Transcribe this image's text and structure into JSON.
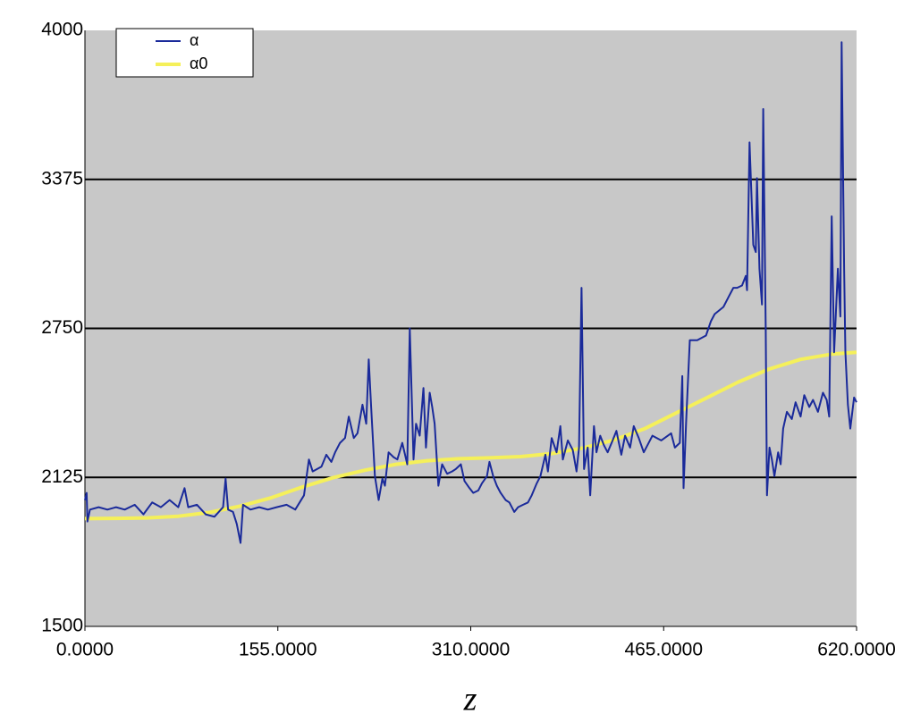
{
  "chart_data": {
    "type": "line",
    "xlabel": "z",
    "xlim": [
      0,
      620
    ],
    "xticks": [
      {
        "value": 0,
        "label": "0.0000"
      },
      {
        "value": 155,
        "label": "155.0000"
      },
      {
        "value": 310,
        "label": "310.0000"
      },
      {
        "value": 465,
        "label": "465.0000"
      },
      {
        "value": 620,
        "label": "620.0000"
      }
    ],
    "ylim": [
      1500,
      4000
    ],
    "yticks": [
      1500,
      2125,
      2750,
      3375,
      4000
    ],
    "grid": true,
    "legend": "upper left",
    "background": "#c8c8c8",
    "series": [
      {
        "name": "α",
        "color": "#1a2a9a",
        "x": [
          0,
          1.4,
          2,
          4,
          11,
          18,
          25,
          32,
          40,
          47,
          54,
          61,
          68,
          75,
          80,
          83,
          90,
          97,
          104,
          111,
          113,
          115,
          119,
          122,
          125,
          127,
          133,
          140,
          147,
          154,
          162,
          169,
          176,
          180,
          183,
          190,
          194,
          198,
          201,
          205,
          209,
          212,
          216,
          219,
          223,
          226,
          228,
          230,
          233,
          236,
          239,
          241,
          244,
          248,
          251,
          255,
          259,
          261,
          264,
          266,
          269,
          272,
          274,
          277,
          279,
          281,
          284,
          287,
          291,
          295,
          298,
          302,
          305,
          309,
          312,
          316,
          319,
          323,
          325,
          328,
          331,
          334,
          338,
          341,
          345,
          348,
          352,
          356,
          359,
          363,
          366,
          370,
          372,
          375,
          379,
          382,
          384,
          388,
          392,
          395,
          397,
          399,
          401,
          404,
          406,
          409,
          411,
          414,
          417,
          420,
          424,
          427,
          431,
          434,
          438,
          441,
          445,
          449,
          456,
          463,
          471,
          474,
          478,
          480,
          481,
          483,
          486,
          492,
          499,
          503,
          506,
          513,
          517,
          521,
          524,
          528,
          531,
          532,
          534,
          537,
          539,
          540,
          542,
          544,
          545,
          547,
          548,
          550,
          552,
          554,
          557,
          559,
          561,
          564,
          568,
          571,
          575,
          578,
          582,
          585,
          589,
          593,
          596,
          598,
          600,
          602,
          605,
          607,
          608,
          610,
          611,
          613,
          615,
          618,
          620
        ],
        "values": [
          2030,
          2060,
          1940,
          1990,
          2000,
          1990,
          2000,
          1990,
          2010,
          1970,
          2020,
          2000,
          2030,
          2000,
          2080,
          2000,
          2010,
          1970,
          1960,
          2000,
          2120,
          1990,
          1980,
          1930,
          1850,
          2010,
          1990,
          2000,
          1990,
          2000,
          2010,
          1990,
          2050,
          2200,
          2150,
          2170,
          2220,
          2190,
          2230,
          2270,
          2290,
          2380,
          2290,
          2310,
          2430,
          2350,
          2620,
          2420,
          2130,
          2030,
          2120,
          2090,
          2230,
          2210,
          2200,
          2270,
          2180,
          2750,
          2200,
          2350,
          2300,
          2500,
          2250,
          2480,
          2420,
          2350,
          2090,
          2180,
          2140,
          2150,
          2160,
          2180,
          2110,
          2080,
          2060,
          2070,
          2100,
          2130,
          2190,
          2130,
          2090,
          2060,
          2030,
          2020,
          1980,
          2000,
          2010,
          2020,
          2050,
          2100,
          2130,
          2220,
          2150,
          2290,
          2230,
          2340,
          2200,
          2280,
          2240,
          2150,
          2250,
          2920,
          2160,
          2250,
          2050,
          2340,
          2230,
          2300,
          2260,
          2230,
          2280,
          2320,
          2220,
          2300,
          2250,
          2340,
          2290,
          2230,
          2300,
          2280,
          2310,
          2250,
          2270,
          2550,
          2080,
          2350,
          2700,
          2700,
          2720,
          2780,
          2810,
          2840,
          2880,
          2920,
          2920,
          2930,
          2970,
          2910,
          3530,
          3100,
          3070,
          3380,
          3000,
          2850,
          3670,
          2750,
          2050,
          2250,
          2200,
          2130,
          2230,
          2180,
          2330,
          2400,
          2370,
          2440,
          2380,
          2470,
          2420,
          2450,
          2400,
          2480,
          2450,
          2380,
          3220,
          2650,
          3000,
          2800,
          3950,
          3000,
          2650,
          2430,
          2330,
          2460,
          2440
        ]
      },
      {
        "name": "α0",
        "color": "#f5f05a",
        "x": [
          0,
          25,
          50,
          75,
          100,
          125,
          150,
          175,
          200,
          225,
          250,
          275,
          300,
          325,
          350,
          375,
          400,
          425,
          450,
          475,
          500,
          525,
          550,
          575,
          600,
          620
        ],
        "values": [
          1952,
          1953,
          1955,
          1962,
          1978,
          2005,
          2040,
          2085,
          2125,
          2155,
          2180,
          2195,
          2203,
          2207,
          2212,
          2225,
          2248,
          2282,
          2330,
          2395,
          2460,
          2525,
          2580,
          2620,
          2642,
          2650
        ]
      }
    ]
  }
}
